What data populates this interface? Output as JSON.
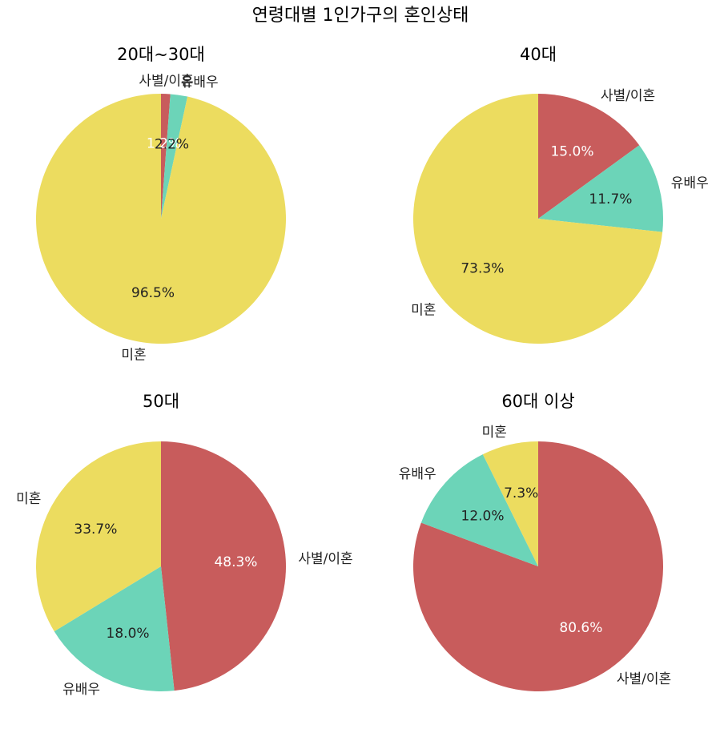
{
  "suptitle": "연령대별 1인가구의 혼인상태",
  "colors": {
    "사별/이혼": "#c85c5c",
    "유배우": "#6cd4b8",
    "미혼": "#ecdc5f"
  },
  "chart_data": [
    {
      "type": "pie",
      "title": "20대~30대",
      "labels": [
        "사별/이혼",
        "유배우",
        "미혼"
      ],
      "values": [
        1.2,
        2.2,
        96.5
      ],
      "value_labels": [
        "1.2%",
        "2.2%",
        "96.5%"
      ],
      "pct_text_colors": [
        "#ffffff",
        "#222222",
        "#222222"
      ],
      "start_angle": 90,
      "direction": "clockwise"
    },
    {
      "type": "pie",
      "title": "40대",
      "labels": [
        "사별/이혼",
        "유배우",
        "미혼"
      ],
      "values": [
        15.0,
        11.7,
        73.3
      ],
      "value_labels": [
        "15.0%",
        "11.7%",
        "73.3%"
      ],
      "pct_text_colors": [
        "#ffffff",
        "#222222",
        "#222222"
      ],
      "start_angle": 90,
      "direction": "clockwise"
    },
    {
      "type": "pie",
      "title": "50대",
      "labels": [
        "사별/이혼",
        "유배우",
        "미혼"
      ],
      "values": [
        48.3,
        18.0,
        33.7
      ],
      "value_labels": [
        "48.3%",
        "18.0%",
        "33.7%"
      ],
      "pct_text_colors": [
        "#ffffff",
        "#222222",
        "#222222"
      ],
      "start_angle": 90,
      "direction": "clockwise"
    },
    {
      "type": "pie",
      "title": "60대 이상",
      "labels": [
        "사별/이혼",
        "유배우",
        "미혼"
      ],
      "values": [
        80.6,
        12.0,
        7.3
      ],
      "value_labels": [
        "80.6%",
        "12.0%",
        "7.3%"
      ],
      "pct_text_colors": [
        "#ffffff",
        "#222222",
        "#222222"
      ],
      "start_angle": 90,
      "direction": "clockwise"
    }
  ]
}
